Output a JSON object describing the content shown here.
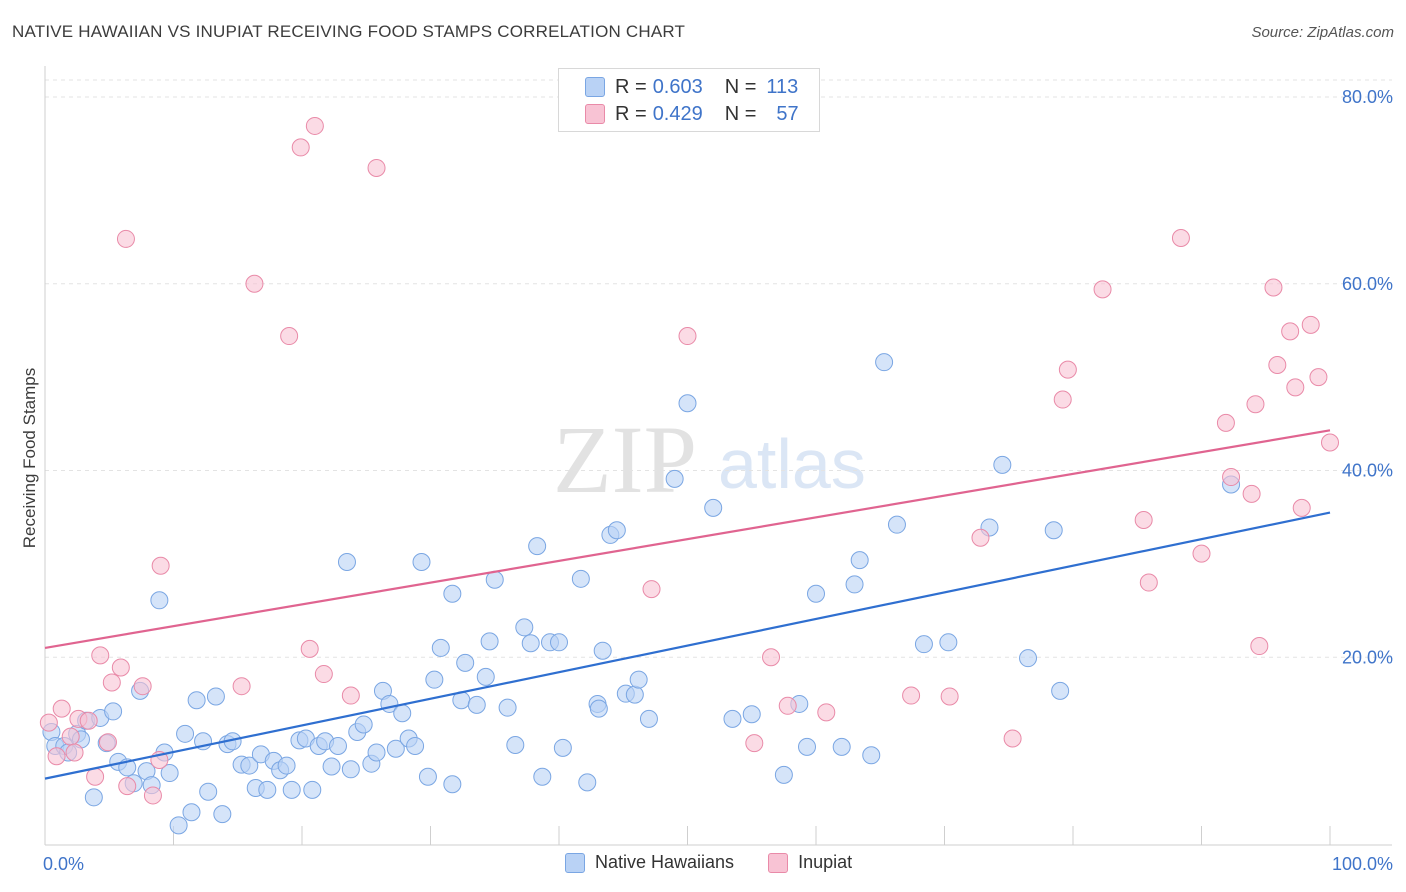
{
  "header": {
    "title": "NATIVE HAWAIIAN VS INUPIAT RECEIVING FOOD STAMPS CORRELATION CHART",
    "source": "Source: ZipAtlas.com"
  },
  "watermark": {
    "zip": "ZIP",
    "atlas": "atlas"
  },
  "legend_top": [
    {
      "r_label": "R =",
      "r_value": "0.603",
      "n_label": "N =",
      "n_value": "113",
      "fill": "#b9d2f5",
      "stroke": "#7aa6e3"
    },
    {
      "r_label": "R =",
      "r_value": "0.429",
      "n_label": "N =",
      "n_value": "57",
      "fill": "#f8c3d4",
      "stroke": "#e98aa8"
    }
  ],
  "legend_bottom": [
    {
      "label": "Native Hawaiians",
      "fill": "#b9d2f5",
      "stroke": "#7aa6e3"
    },
    {
      "label": "Inupiat",
      "fill": "#f8c3d4",
      "stroke": "#e98aa8"
    }
  ],
  "chart_data": {
    "type": "scatter",
    "title": "NATIVE HAWAIIAN VS INUPIAT RECEIVING FOOD STAMPS CORRELATION CHART",
    "xlabel": "",
    "ylabel": "Receiving Food Stamps",
    "xlim": [
      0,
      100
    ],
    "ylim": [
      0,
      80
    ],
    "x_tick_labels": [
      {
        "value": 0,
        "label": "0.0%"
      },
      {
        "value": 100,
        "label": "100.0%"
      }
    ],
    "y_tick_labels": [
      {
        "value": 20,
        "label": "20.0%"
      },
      {
        "value": 40,
        "label": "40.0%"
      },
      {
        "value": 60,
        "label": "60.0%"
      },
      {
        "value": 80,
        "label": "80.0%"
      }
    ],
    "grid": "horizontal dashed",
    "legend": "top-center",
    "series": [
      {
        "name": "Native Hawaiians",
        "color": "#7aa6e3",
        "fill": "#b9d2f5",
        "trend_color": "#2f6fd0",
        "trend": [
          [
            0,
            7.0
          ],
          [
            100,
            35.5
          ]
        ],
        "points": [
          [
            0.5,
            12.0
          ],
          [
            0.8,
            10.5
          ],
          [
            1.5,
            10.5
          ],
          [
            1.8,
            9.8
          ],
          [
            2.5,
            11.8
          ],
          [
            2.8,
            11.2
          ],
          [
            3.2,
            13.2
          ],
          [
            3.8,
            5.0
          ],
          [
            4.3,
            13.5
          ],
          [
            4.8,
            10.8
          ],
          [
            5.3,
            14.2
          ],
          [
            5.7,
            8.8
          ],
          [
            6.4,
            8.2
          ],
          [
            6.9,
            6.5
          ],
          [
            7.4,
            16.4
          ],
          [
            7.9,
            7.8
          ],
          [
            8.3,
            6.3
          ],
          [
            8.9,
            26.1
          ],
          [
            9.3,
            9.8
          ],
          [
            9.7,
            7.6
          ],
          [
            10.4,
            2.0
          ],
          [
            10.9,
            11.8
          ],
          [
            11.4,
            3.4
          ],
          [
            11.8,
            15.4
          ],
          [
            12.3,
            11.0
          ],
          [
            12.7,
            5.6
          ],
          [
            13.3,
            15.8
          ],
          [
            13.8,
            3.2
          ],
          [
            14.2,
            10.7
          ],
          [
            14.6,
            11.0
          ],
          [
            15.3,
            8.5
          ],
          [
            15.9,
            8.4
          ],
          [
            16.4,
            6.0
          ],
          [
            16.8,
            9.6
          ],
          [
            17.3,
            5.8
          ],
          [
            17.8,
            8.9
          ],
          [
            18.3,
            7.9
          ],
          [
            18.8,
            8.4
          ],
          [
            19.2,
            5.8
          ],
          [
            19.8,
            11.1
          ],
          [
            20.3,
            11.3
          ],
          [
            20.8,
            5.8
          ],
          [
            21.3,
            10.5
          ],
          [
            21.8,
            11.0
          ],
          [
            22.3,
            8.3
          ],
          [
            22.8,
            10.5
          ],
          [
            23.5,
            30.2
          ],
          [
            23.8,
            8.0
          ],
          [
            24.3,
            12.0
          ],
          [
            24.8,
            12.8
          ],
          [
            25.4,
            8.6
          ],
          [
            25.8,
            9.8
          ],
          [
            26.3,
            16.4
          ],
          [
            26.8,
            15.0
          ],
          [
            27.3,
            10.2
          ],
          [
            27.8,
            14.0
          ],
          [
            28.3,
            11.3
          ],
          [
            28.8,
            10.5
          ],
          [
            29.3,
            30.2
          ],
          [
            29.8,
            7.2
          ],
          [
            30.3,
            17.6
          ],
          [
            30.8,
            21.0
          ],
          [
            31.7,
            6.4
          ],
          [
            31.7,
            26.8
          ],
          [
            32.4,
            15.4
          ],
          [
            32.7,
            19.4
          ],
          [
            33.6,
            14.9
          ],
          [
            34.3,
            17.9
          ],
          [
            34.6,
            21.7
          ],
          [
            35.0,
            28.3
          ],
          [
            36.0,
            14.6
          ],
          [
            36.6,
            10.6
          ],
          [
            37.3,
            23.2
          ],
          [
            37.8,
            21.5
          ],
          [
            38.3,
            31.9
          ],
          [
            38.7,
            7.2
          ],
          [
            39.3,
            21.6
          ],
          [
            40.0,
            21.6
          ],
          [
            40.3,
            10.3
          ],
          [
            41.7,
            28.4
          ],
          [
            42.2,
            6.6
          ],
          [
            43.0,
            15.0
          ],
          [
            43.1,
            14.5
          ],
          [
            43.4,
            20.7
          ],
          [
            44.0,
            33.1
          ],
          [
            44.5,
            33.6
          ],
          [
            45.2,
            16.1
          ],
          [
            45.9,
            16.0
          ],
          [
            46.2,
            17.6
          ],
          [
            47.0,
            13.4
          ],
          [
            49.0,
            39.1
          ],
          [
            50.0,
            47.2
          ],
          [
            52.0,
            36.0
          ],
          [
            53.5,
            13.4
          ],
          [
            55.0,
            13.9
          ],
          [
            57.5,
            7.4
          ],
          [
            58.7,
            15.0
          ],
          [
            59.3,
            10.4
          ],
          [
            60.0,
            26.8
          ],
          [
            62.0,
            10.4
          ],
          [
            63.0,
            27.8
          ],
          [
            63.4,
            30.4
          ],
          [
            64.3,
            9.5
          ],
          [
            65.3,
            51.6
          ],
          [
            66.3,
            34.2
          ],
          [
            68.4,
            21.4
          ],
          [
            70.3,
            21.6
          ],
          [
            73.5,
            33.9
          ],
          [
            74.5,
            40.6
          ],
          [
            76.5,
            19.9
          ],
          [
            78.5,
            33.6
          ],
          [
            79.0,
            16.4
          ],
          [
            92.3,
            38.5
          ]
        ]
      },
      {
        "name": "Inupiat",
        "color": "#e98aa8",
        "fill": "#f8c3d4",
        "trend_color": "#e06490",
        "trend": [
          [
            0,
            21.0
          ],
          [
            100,
            44.3
          ]
        ],
        "points": [
          [
            0.3,
            13.0
          ],
          [
            0.9,
            9.4
          ],
          [
            1.3,
            14.5
          ],
          [
            2.0,
            11.5
          ],
          [
            2.3,
            9.8
          ],
          [
            2.6,
            13.4
          ],
          [
            3.4,
            13.2
          ],
          [
            3.9,
            7.2
          ],
          [
            4.3,
            20.2
          ],
          [
            4.9,
            10.9
          ],
          [
            5.2,
            17.3
          ],
          [
            5.9,
            18.9
          ],
          [
            6.4,
            6.2
          ],
          [
            7.6,
            16.9
          ],
          [
            8.4,
            5.2
          ],
          [
            8.9,
            9.0
          ],
          [
            9.0,
            29.8
          ],
          [
            6.3,
            64.8
          ],
          [
            15.3,
            16.9
          ],
          [
            16.3,
            60.0
          ],
          [
            19.0,
            54.4
          ],
          [
            19.9,
            74.6
          ],
          [
            20.6,
            20.9
          ],
          [
            21.0,
            76.9
          ],
          [
            21.7,
            18.2
          ],
          [
            23.8,
            15.9
          ],
          [
            25.8,
            72.4
          ],
          [
            47.2,
            27.3
          ],
          [
            50.0,
            54.4
          ],
          [
            55.2,
            10.8
          ],
          [
            56.5,
            20.0
          ],
          [
            57.8,
            14.8
          ],
          [
            60.8,
            14.1
          ],
          [
            67.4,
            15.9
          ],
          [
            70.4,
            15.8
          ],
          [
            72.8,
            32.8
          ],
          [
            75.3,
            11.3
          ],
          [
            79.2,
            47.6
          ],
          [
            79.6,
            50.8
          ],
          [
            82.3,
            59.4
          ],
          [
            85.5,
            34.7
          ],
          [
            85.9,
            28.0
          ],
          [
            88.4,
            64.9
          ],
          [
            90.0,
            31.1
          ],
          [
            91.9,
            45.1
          ],
          [
            92.3,
            39.3
          ],
          [
            93.9,
            37.5
          ],
          [
            94.2,
            47.1
          ],
          [
            94.5,
            21.2
          ],
          [
            95.6,
            59.6
          ],
          [
            95.9,
            51.3
          ],
          [
            96.9,
            54.9
          ],
          [
            97.3,
            48.9
          ],
          [
            97.8,
            36.0
          ],
          [
            98.5,
            55.6
          ],
          [
            99.1,
            50.0
          ],
          [
            100.0,
            43.0
          ]
        ]
      }
    ]
  }
}
